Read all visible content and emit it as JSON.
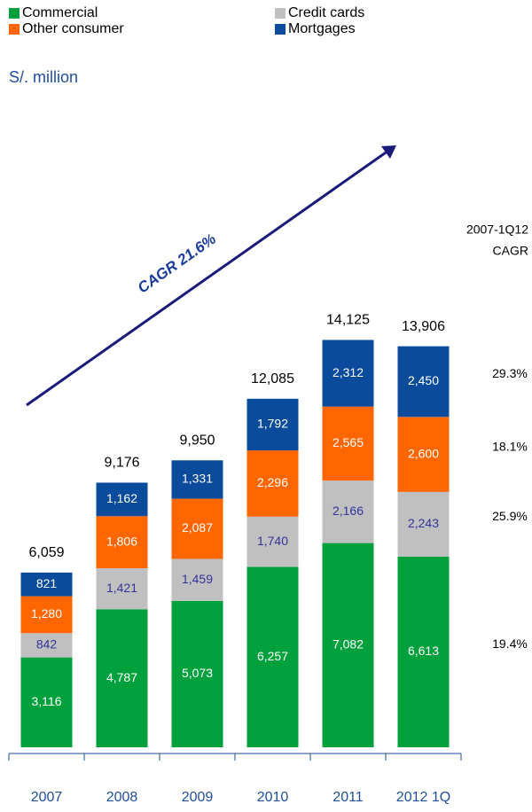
{
  "chart_data": {
    "type": "stacked_bar",
    "unit_label": "S/. million",
    "annotation": "CAGR 21.6%",
    "cagr_header": [
      "2007-1Q12",
      "CAGR"
    ],
    "categories": [
      "2007",
      "2008",
      "2009",
      "2010",
      "2011",
      "2012 1Q"
    ],
    "series": [
      {
        "name": "Commercial",
        "color": "#00a03c",
        "values": [
          3116,
          4787,
          5073,
          6257,
          7082,
          6613
        ],
        "value_labels": [
          "3,116",
          "4,787",
          "5,073",
          "6,257",
          "7,082",
          "6,613"
        ],
        "cagr": 19.4,
        "cagr_label": "19.4%"
      },
      {
        "name": "Credit cards",
        "color": "#c0c0c0",
        "values": [
          842,
          1421,
          1459,
          1740,
          2166,
          2243
        ],
        "value_labels": [
          "842",
          "1,421",
          "1,459",
          "1,740",
          "2,166",
          "2,243"
        ],
        "cagr": 25.9,
        "cagr_label": "25.9%"
      },
      {
        "name": "Other consumer",
        "color": "#ff6600",
        "values": [
          1280,
          1806,
          2087,
          2296,
          2565,
          2600
        ],
        "value_labels": [
          "1,280",
          "1,806",
          "2,087",
          "2,296",
          "2,565",
          "2,600"
        ],
        "cagr": 18.1,
        "cagr_label": "18.1%"
      },
      {
        "name": "Mortgages",
        "color": "#0b4b9b",
        "values": [
          821,
          1162,
          1331,
          1792,
          2312,
          2450
        ],
        "value_labels": [
          "821",
          "1,162",
          "1,331",
          "1,792",
          "2,312",
          "2,450"
        ],
        "cagr": 29.3,
        "cagr_label": "29.3%"
      }
    ],
    "totals": [
      6059,
      9176,
      9950,
      12085,
      14125,
      13906
    ],
    "total_labels": [
      "6,059",
      "9,176",
      "9,950",
      "12,085",
      "14,125",
      "13,906"
    ],
    "ylim": [
      0,
      15000
    ]
  }
}
